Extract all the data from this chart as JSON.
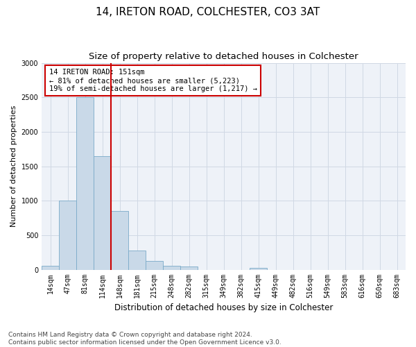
{
  "title": "14, IRETON ROAD, COLCHESTER, CO3 3AT",
  "subtitle": "Size of property relative to detached houses in Colchester",
  "xlabel": "Distribution of detached houses by size in Colchester",
  "ylabel": "Number of detached properties",
  "bar_labels": [
    "14sqm",
    "47sqm",
    "81sqm",
    "114sqm",
    "148sqm",
    "181sqm",
    "215sqm",
    "248sqm",
    "282sqm",
    "315sqm",
    "349sqm",
    "382sqm",
    "415sqm",
    "449sqm",
    "482sqm",
    "516sqm",
    "549sqm",
    "583sqm",
    "616sqm",
    "650sqm",
    "683sqm"
  ],
  "bar_values": [
    60,
    1000,
    2500,
    1650,
    850,
    280,
    130,
    60,
    50,
    0,
    0,
    0,
    30,
    0,
    0,
    0,
    0,
    0,
    0,
    0,
    0
  ],
  "bar_color": "#c9d9e8",
  "bar_edge_color": "#7aaac8",
  "red_line_index": 4,
  "annotation_text": "14 IRETON ROAD: 151sqm\n← 81% of detached houses are smaller (5,223)\n19% of semi-detached houses are larger (1,217) →",
  "annotation_box_color": "#ffffff",
  "annotation_box_edge": "#cc0000",
  "ylim": [
    0,
    3000
  ],
  "yticks": [
    0,
    500,
    1000,
    1500,
    2000,
    2500,
    3000
  ],
  "grid_color": "#d0d8e4",
  "background_color": "#eef2f8",
  "footer_line1": "Contains HM Land Registry data © Crown copyright and database right 2024.",
  "footer_line2": "Contains public sector information licensed under the Open Government Licence v3.0.",
  "title_fontsize": 11,
  "subtitle_fontsize": 9.5,
  "xlabel_fontsize": 8.5,
  "ylabel_fontsize": 8,
  "tick_fontsize": 7,
  "footer_fontsize": 6.5,
  "annotation_fontsize": 7.5
}
